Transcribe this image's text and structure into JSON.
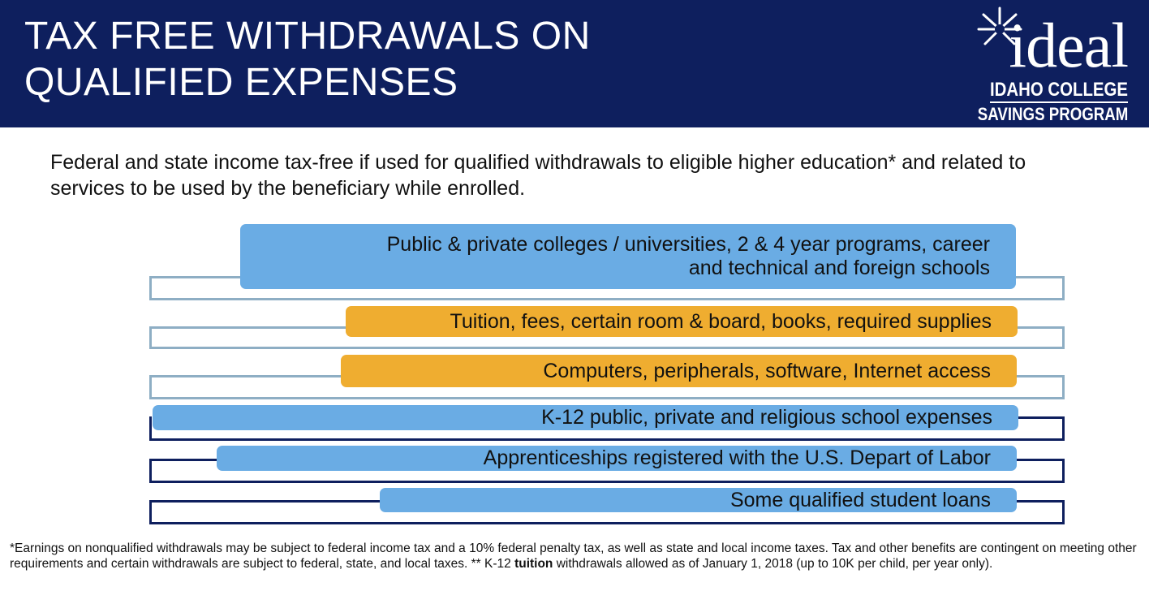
{
  "header": {
    "title_line1": "TAX FREE WITHDRAWALS ON",
    "title_line2": "QUALIFIED EXPENSES"
  },
  "logo": {
    "wordmark": "ideal",
    "line1": "IDAHO COLLEGE",
    "line2": "SAVINGS PROGRAM",
    "icon": "sunburst-icon"
  },
  "intro": "Federal and state income tax-free if used for qualified withdrawals to eligible higher education* and related to services to be used by the beneficiary while enrolled.",
  "items": [
    {
      "line1": "Public & private colleges / universities, 2 & 4 year programs, career",
      "line2": "and technical and foreign schools",
      "color": "#6aace4"
    },
    {
      "line1": "Tuition, fees, certain room & board, books, required supplies",
      "color": "#efad30"
    },
    {
      "line1": "Computers, peripherals, software, Internet access",
      "color": "#efad30"
    },
    {
      "line1": "K-12 public, private and religious school expenses",
      "color": "#6aace4"
    },
    {
      "line1": "Apprenticeships registered with the U.S. Depart of Labor",
      "color": "#6aace4"
    },
    {
      "line1": "Some qualified student loans",
      "color": "#6aace4"
    }
  ],
  "footnote": {
    "part1": "*Earnings on nonqualified withdrawals may be subject to federal income tax and a 10% federal penalty tax, as well as state and local income taxes. Tax and other benefits are contingent on meeting other requirements and certain withdrawals are subject to federal, state, and local taxes. ** K-12 ",
    "bold": "tuition",
    "part2": " withdrawals allowed as of January 1, 2018 (up to 10K per child, per year only)."
  },
  "colors": {
    "navy": "#0e1f5e",
    "blue": "#6aace4",
    "orange": "#efad30",
    "bracket_light": "#8eaec4"
  }
}
